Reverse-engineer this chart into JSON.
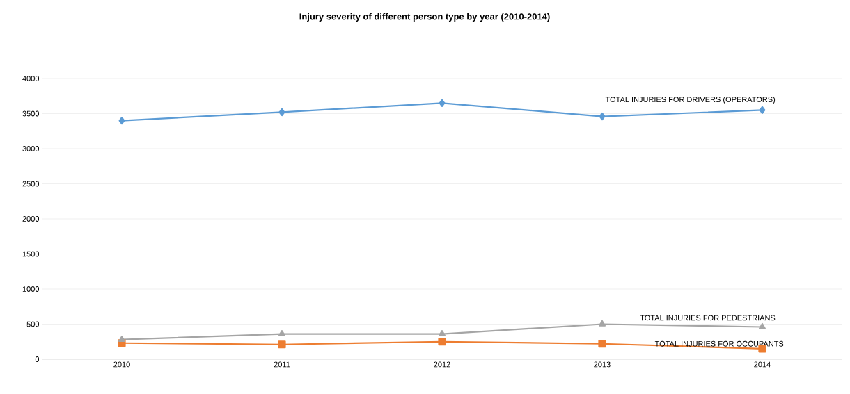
{
  "chart_data": {
    "type": "line",
    "title": "Injury severity of different person type by year (2010-2014)",
    "categories": [
      "2010",
      "2011",
      "2012",
      "2013",
      "2014"
    ],
    "series": [
      {
        "name": "TOTAL INJURIES FOR DRIVERS (OPERATORS)",
        "color": "#5b9bd5",
        "marker": "diamond",
        "values": [
          3400,
          3520,
          3650,
          3460,
          3550
        ]
      },
      {
        "name": "TOTAL INJURIES FOR OCCUPANTS",
        "color": "#ed7d31",
        "marker": "square",
        "values": [
          230,
          210,
          250,
          220,
          150
        ]
      },
      {
        "name": "TOTAL INJURIES FOR PEDESTRIANS",
        "color": "#a5a5a5",
        "marker": "triangle",
        "values": [
          280,
          360,
          360,
          500,
          460
        ]
      }
    ],
    "ylim": [
      0,
      4000
    ],
    "yticks": [
      0,
      500,
      1000,
      1500,
      2000,
      2500,
      3000,
      3500,
      4000
    ],
    "grid": "y",
    "line_style": "solid"
  }
}
